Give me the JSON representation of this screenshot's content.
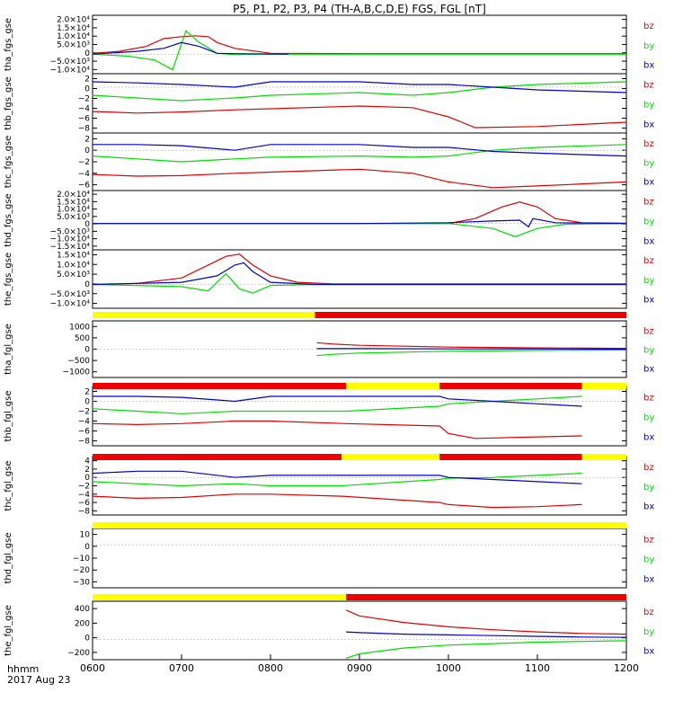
{
  "title": "P5, P1, P2, P3, P4 (TH-A,B,C,D,E) FGS, FGL [nT]",
  "footer": {
    "label1": "hhmm",
    "label2": "2017 Aug 23"
  },
  "colors": {
    "bz": "#e00000",
    "by": "#00dd00",
    "bx": "#0000cc",
    "bar_yellow": "#ffff00",
    "bar_red": "#ee0000",
    "axis": "#000000"
  },
  "chart_data": {
    "type": "line",
    "x_axis": {
      "label": "hhmm",
      "ticks": [
        "0600",
        "0700",
        "0800",
        "0900",
        "1000",
        "1100",
        "1200"
      ]
    },
    "legend": [
      "bz",
      "by",
      "bx"
    ],
    "panels": [
      {
        "ylabel": "tha_fgs_gse",
        "yticks": [
          "2.0×10⁴",
          "1.5×10⁴",
          "1.0×10⁴",
          "5.0×10³",
          "0",
          "−5.0×10³",
          "−1.0×10⁴"
        ],
        "yrange": [
          -10000,
          20000
        ],
        "series": [
          {
            "name": "bz",
            "x": [
              600,
              630,
              660,
              680,
              700,
              715,
              730,
              740,
              760,
              800,
              900,
              1000,
              1100,
              1200
            ],
            "y": [
              500,
              1500,
              4000,
              8000,
              9000,
              9500,
              9000,
              6000,
              3000,
              500,
              300,
              300,
              300,
              300
            ]
          },
          {
            "name": "by",
            "x": [
              600,
              640,
              670,
              690,
              705,
              720,
              740,
              760,
              800,
              900,
              1000,
              1200
            ],
            "y": [
              0,
              -1000,
              -3000,
              -8000,
              12000,
              6000,
              500,
              -200,
              0,
              0,
              0,
              0
            ]
          },
          {
            "name": "bx",
            "x": [
              600,
              650,
              680,
              700,
              720,
              740,
              760,
              820
            ],
            "y": [
              0,
              1500,
              3000,
              6000,
              4000,
              500,
              300,
              0
            ]
          }
        ]
      },
      {
        "ylabel": "thb_fgs_gse",
        "yticks": [
          "2",
          "0",
          "−2",
          "−4",
          "−6",
          "−8"
        ],
        "yrange": [
          -8.5,
          2.5
        ],
        "series": [
          {
            "name": "bz",
            "x": [
              600,
              650,
              700,
              760,
              800,
              900,
              960,
              1000,
              1030,
              1100,
              1200
            ],
            "y": [
              -4.5,
              -4.8,
              -4.6,
              -4.2,
              -4.0,
              -3.5,
              -3.8,
              -5.5,
              -7.5,
              -7.3,
              -6.5
            ]
          },
          {
            "name": "by",
            "x": [
              600,
              650,
              700,
              760,
              800,
              900,
              960,
              1000,
              1050,
              1100,
              1200
            ],
            "y": [
              -1.5,
              -2.0,
              -2.5,
              -2.0,
              -1.5,
              -1.0,
              -1.5,
              -1.0,
              0.0,
              0.5,
              1.0
            ]
          },
          {
            "name": "bx",
            "x": [
              600,
              650,
              700,
              760,
              800,
              900,
              960,
              1000,
              1050,
              1100,
              1200
            ],
            "y": [
              1.0,
              0.8,
              0.5,
              0.0,
              1.0,
              1.0,
              0.5,
              0.5,
              0.0,
              -0.5,
              -1.0
            ]
          }
        ]
      },
      {
        "ylabel": "thc_fgs_gse",
        "yticks": [
          "2",
          "0",
          "−2",
          "−4",
          "−6"
        ],
        "yrange": [
          -7,
          3
        ],
        "series": [
          {
            "name": "bz",
            "x": [
              600,
              650,
              700,
              760,
              800,
              900,
              960,
              1000,
              1050,
              1100,
              1200
            ],
            "y": [
              -4.2,
              -4.5,
              -4.4,
              -4.0,
              -3.8,
              -3.3,
              -4.0,
              -5.5,
              -6.5,
              -6.2,
              -5.5
            ]
          },
          {
            "name": "by",
            "x": [
              600,
              650,
              700,
              760,
              800,
              900,
              960,
              1000,
              1050,
              1100,
              1200
            ],
            "y": [
              -1.0,
              -1.5,
              -2.0,
              -1.5,
              -1.2,
              -1.0,
              -1.2,
              -1.0,
              0.0,
              0.5,
              1.0
            ]
          },
          {
            "name": "bx",
            "x": [
              600,
              650,
              700,
              760,
              800,
              900,
              960,
              1000,
              1050,
              1100,
              1200
            ],
            "y": [
              1.0,
              1.0,
              0.8,
              0.0,
              1.0,
              1.0,
              0.5,
              0.5,
              -0.2,
              -0.5,
              -1.0
            ]
          }
        ]
      },
      {
        "ylabel": "thd_fgs_gse",
        "yticks": [
          "2.0×10⁴",
          "1.5×10⁴",
          "1.0×10⁴",
          "5.0×10³",
          "0",
          "−5.0×10³",
          "−1.0×10⁴",
          "−1.5×10⁴"
        ],
        "yrange": [
          -16000,
          20000
        ],
        "series": [
          {
            "name": "bz",
            "x": [
              600,
              900,
              1000,
              1030,
              1060,
              1080,
              1100,
              1120,
              1150,
              1200
            ],
            "y": [
              0,
              0,
              0,
              3000,
              10000,
              13000,
              10000,
              3000,
              500,
              200
            ]
          },
          {
            "name": "by",
            "x": [
              600,
              900,
              1000,
              1050,
              1075,
              1090,
              1100,
              1130,
              1200
            ],
            "y": [
              0,
              0,
              0,
              -3000,
              -8000,
              -5000,
              -3000,
              -500,
              0
            ]
          },
          {
            "name": "bx",
            "x": [
              600,
              900,
              1000,
              1050,
              1080,
              1090,
              1095,
              1120,
              1200
            ],
            "y": [
              0,
              0,
              500,
              1500,
              2000,
              -2000,
              3000,
              500,
              0
            ]
          }
        ]
      },
      {
        "ylabel": "the_fgs_gse",
        "yticks": [
          "1.5×10⁴",
          "1.0×10⁴",
          "5.0×10³",
          "0",
          "−5.0×10³",
          "−1.0×10⁴"
        ],
        "yrange": [
          -11000,
          16000
        ],
        "series": [
          {
            "name": "bz",
            "x": [
              600,
              650,
              700,
              730,
              750,
              765,
              780,
              800,
              830,
              870,
              1200
            ],
            "y": [
              0,
              500,
              3000,
              9000,
              13000,
              14000,
              9000,
              4000,
              1000,
              300,
              300
            ]
          },
          {
            "name": "by",
            "x": [
              600,
              700,
              730,
              750,
              765,
              780,
              800,
              850,
              1200
            ],
            "y": [
              0,
              -1000,
              -3000,
              5000,
              -2000,
              -4000,
              -500,
              0,
              0
            ]
          },
          {
            "name": "bx",
            "x": [
              600,
              700,
              740,
              760,
              770,
              780,
              800,
              850,
              1200
            ],
            "y": [
              0,
              1000,
              4000,
              9000,
              10000,
              6000,
              1000,
              0,
              0
            ]
          }
        ]
      },
      {
        "ylabel": "tha_fgl_gse",
        "yticks": [
          "1000",
          "500",
          "0",
          "−500",
          "−1000"
        ],
        "yrange": [
          -1100,
          1100
        ],
        "series": [
          {
            "name": "bz",
            "x": [
              852,
              870,
              900,
              1000,
              1100,
              1200
            ],
            "y": [
              250,
              200,
              150,
              80,
              50,
              30
            ]
          },
          {
            "name": "by",
            "x": [
              852,
              870,
              900,
              1000,
              1100,
              1200
            ],
            "y": [
              -250,
              -200,
              -150,
              -80,
              -50,
              -30
            ]
          },
          {
            "name": "bx",
            "x": [
              852,
              900,
              1000,
              1100,
              1200
            ],
            "y": [
              20,
              20,
              10,
              10,
              0
            ]
          }
        ]
      },
      {
        "ylabel": "thb_fgl_gse",
        "yticks": [
          "2",
          "0",
          "−2",
          "−4",
          "−6",
          "−8"
        ],
        "yrange": [
          -9,
          3
        ],
        "series": [
          {
            "name": "bz",
            "x": [
              600,
              650,
              700,
              760,
              800,
              885,
              990,
              1000,
              1030,
              1100,
              1150
            ],
            "y": [
              -4.5,
              -4.7,
              -4.5,
              -4.0,
              -4.0,
              -4.5,
              -5.0,
              -6.5,
              -7.5,
              -7.2,
              -7.0
            ]
          },
          {
            "name": "by",
            "x": [
              600,
              650,
              700,
              760,
              800,
              885,
              990,
              1000,
              1050,
              1100,
              1150
            ],
            "y": [
              -1.5,
              -2.0,
              -2.5,
              -2.0,
              -2.0,
              -2.0,
              -1.0,
              -0.5,
              0.0,
              0.5,
              1.0
            ]
          },
          {
            "name": "bx",
            "x": [
              600,
              650,
              700,
              760,
              800,
              885,
              990,
              1000,
              1050,
              1100,
              1150
            ],
            "y": [
              1.0,
              1.0,
              0.8,
              0.0,
              1.0,
              1.0,
              1.0,
              0.5,
              0.0,
              -0.5,
              -1.0
            ]
          }
        ]
      },
      {
        "ylabel": "thc_fgl_gse",
        "yticks": [
          "4",
          "2",
          "0",
          "−2",
          "−4",
          "−6",
          "−8"
        ],
        "yrange": [
          -9,
          5
        ],
        "series": [
          {
            "name": "bz",
            "x": [
              600,
              650,
              700,
              760,
              800,
              880,
              990,
              1000,
              1050,
              1100,
              1150
            ],
            "y": [
              -4.5,
              -5.0,
              -4.8,
              -4.0,
              -4.0,
              -4.5,
              -6.0,
              -6.5,
              -7.2,
              -7.0,
              -6.5
            ]
          },
          {
            "name": "by",
            "x": [
              600,
              650,
              700,
              760,
              800,
              880,
              990,
              1000,
              1050,
              1100,
              1150
            ],
            "y": [
              -1.0,
              -1.5,
              -2.0,
              -1.5,
              -2.0,
              -2.0,
              -0.5,
              -0.2,
              0.0,
              0.5,
              1.0
            ]
          },
          {
            "name": "bx",
            "x": [
              600,
              650,
              700,
              760,
              800,
              880,
              990,
              1000,
              1050,
              1100,
              1150
            ],
            "y": [
              1.0,
              1.5,
              1.5,
              0.0,
              0.5,
              0.5,
              0.5,
              0.0,
              -0.5,
              -1.0,
              -1.5
            ]
          }
        ]
      },
      {
        "ylabel": "thd_fgl_gse",
        "yticks": [
          "10",
          "0",
          "−10",
          "−20",
          "−30"
        ],
        "yrange": [
          -33,
          13
        ],
        "series": []
      },
      {
        "ylabel": "the_fgl_gse",
        "yticks": [
          "400",
          "200",
          "0",
          "−200"
        ],
        "yrange": [
          -280,
          520
        ],
        "series": [
          {
            "name": "bz",
            "x": [
              885,
              900,
              950,
              1000,
              1050,
              1100,
              1150,
              1200
            ],
            "y": [
              400,
              320,
              230,
              170,
              130,
              100,
              80,
              70
            ]
          },
          {
            "name": "by",
            "x": [
              885,
              900,
              950,
              1000,
              1050,
              1100,
              1150,
              1200
            ],
            "y": [
              -260,
              -200,
              -120,
              -80,
              -60,
              -40,
              -30,
              -20
            ]
          },
          {
            "name": "bx",
            "x": [
              885,
              900,
              950,
              1000,
              1050,
              1100,
              1150,
              1200
            ],
            "y": [
              100,
              90,
              70,
              60,
              50,
              40,
              30,
              25
            ]
          }
        ]
      }
    ],
    "mode_bars": [
      {
        "segments": [
          {
            "x0": 600,
            "x1": 850,
            "mode": "yellow"
          },
          {
            "x0": 850,
            "x1": 1200,
            "mode": "red"
          }
        ]
      },
      {
        "segments": [
          {
            "x0": 600,
            "x1": 885,
            "mode": "red"
          },
          {
            "x0": 885,
            "x1": 990,
            "mode": "yellow"
          },
          {
            "x0": 990,
            "x1": 1150,
            "mode": "red"
          },
          {
            "x0": 1150,
            "x1": 1200,
            "mode": "yellow"
          }
        ]
      },
      {
        "segments": [
          {
            "x0": 600,
            "x1": 880,
            "mode": "red"
          },
          {
            "x0": 880,
            "x1": 990,
            "mode": "yellow"
          },
          {
            "x0": 990,
            "x1": 1150,
            "mode": "red"
          },
          {
            "x0": 1150,
            "x1": 1200,
            "mode": "yellow"
          }
        ]
      },
      {
        "segments": [
          {
            "x0": 600,
            "x1": 1200,
            "mode": "yellow"
          }
        ]
      },
      {
        "segments": [
          {
            "x0": 600,
            "x1": 885,
            "mode": "yellow"
          },
          {
            "x0": 885,
            "x1": 1200,
            "mode": "red"
          }
        ]
      }
    ]
  }
}
